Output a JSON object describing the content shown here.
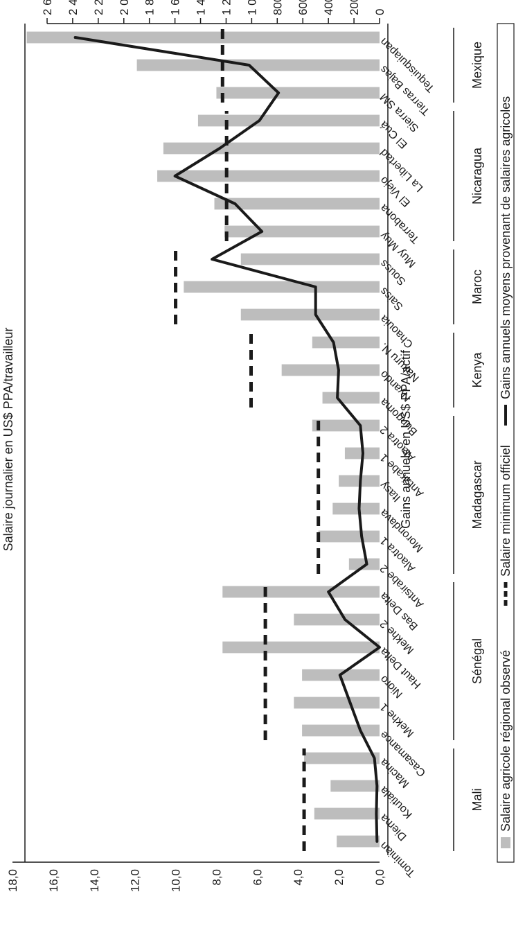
{
  "chart_data": {
    "type": "bar",
    "orientation": "rotated-90",
    "categories": [
      "Tominian",
      "Diema",
      "Koutiala",
      "Macina",
      "Casamance",
      "Mekhe 1",
      "Nioro",
      "Haut Delta",
      "Mekhe 2",
      "Bas Delta",
      "Antsirabe 2",
      "Alaotra 1",
      "Morondava",
      "Itasy",
      "Antsirabe 1",
      "Alaotra 2",
      "Bungoma",
      "Nyando",
      "Nakuru N.",
      "Chaouia",
      "Saiss",
      "Souss",
      "Muy Muy",
      "Terrabona",
      "El Viejo",
      "La Libertad",
      "El Cuá",
      "Sierra SM",
      "Tierras Bajas",
      "Tequisquiapan"
    ],
    "groups": [
      {
        "name": "Mali",
        "start": 0,
        "end": 3
      },
      {
        "name": "Sénégal",
        "start": 4,
        "end": 9
      },
      {
        "name": "Madagascar",
        "start": 10,
        "end": 15
      },
      {
        "name": "Kenya",
        "start": 16,
        "end": 18
      },
      {
        "name": "Maroc",
        "start": 19,
        "end": 21
      },
      {
        "name": "Nicaragua",
        "start": 22,
        "end": 26
      },
      {
        "name": "Mexique",
        "start": 27,
        "end": 29
      }
    ],
    "series": [
      {
        "name": "Salaire agricole régional observé",
        "axis": "left",
        "type": "bar",
        "color": "#bdbdbd",
        "values": [
          2.1,
          3.2,
          2.4,
          3.7,
          3.8,
          4.2,
          3.8,
          7.7,
          4.2,
          7.7,
          1.5,
          3.0,
          2.3,
          2.0,
          1.7,
          3.3,
          2.8,
          4.8,
          3.3,
          6.8,
          9.6,
          6.8,
          7.6,
          8.1,
          10.9,
          10.6,
          8.9,
          8.0,
          11.9,
          17.3
        ]
      },
      {
        "name": "Gains annuels moyens provenant de salaires agricoles",
        "axis": "right",
        "type": "line",
        "color": "#1a1a1a",
        "values": [
          20,
          25,
          20,
          40,
          150,
          230,
          310,
          0,
          270,
          400,
          100,
          140,
          160,
          150,
          130,
          150,
          330,
          320,
          360,
          500,
          500,
          1310,
          920,
          1130,
          1600,
          1250,
          940,
          790,
          1020,
          2380
        ]
      }
    ],
    "min_wage": {
      "name": "Salaire minimum officiel",
      "axis": "left",
      "segments": [
        {
          "start": 0,
          "end": 3,
          "value": 3.7
        },
        {
          "start": 4,
          "end": 9,
          "value": 5.6
        },
        {
          "start": 10,
          "end": 15,
          "value": 3.0
        },
        {
          "start": 16,
          "end": 18,
          "value": 6.3
        },
        {
          "start": 19,
          "end": 21,
          "value": 10.0
        },
        {
          "start": 22,
          "end": 26,
          "value": 7.5
        },
        {
          "start": 27,
          "end": 29,
          "value": 7.7
        }
      ]
    },
    "left_axis": {
      "label": "Salaire journalier en US$ PPA/travailleur",
      "ylim": [
        0,
        18
      ],
      "ticks": [
        0,
        2,
        4,
        6,
        8,
        10,
        12,
        14,
        16,
        18
      ],
      "tick_labels": [
        "0,0",
        "2,0",
        "4,0",
        "6,0",
        "8,0",
        "10,0",
        "12,0",
        "14,0",
        "16,0",
        "18,0"
      ]
    },
    "right_axis": {
      "label": "Gains annuels en US$ PPA/actif",
      "ylim": [
        0,
        2600
      ],
      "ticks": [
        0,
        200,
        400,
        600,
        800,
        1000,
        1200,
        1400,
        1600,
        1800,
        2000,
        2200,
        2400,
        2600
      ],
      "tick_labels": [
        "0",
        "200",
        "400",
        "600",
        "800",
        "1 000",
        "1 200",
        "1 400",
        "1 600",
        "1 800",
        "2 000",
        "2 200",
        "2 400",
        "2 600"
      ]
    },
    "legend": {
      "position": "bottom",
      "items": [
        "Salaire agricole régional observé",
        "Salaire minimum officiel",
        "Gains annuels moyens provenant de salaires agricoles"
      ]
    },
    "grid": false
  }
}
